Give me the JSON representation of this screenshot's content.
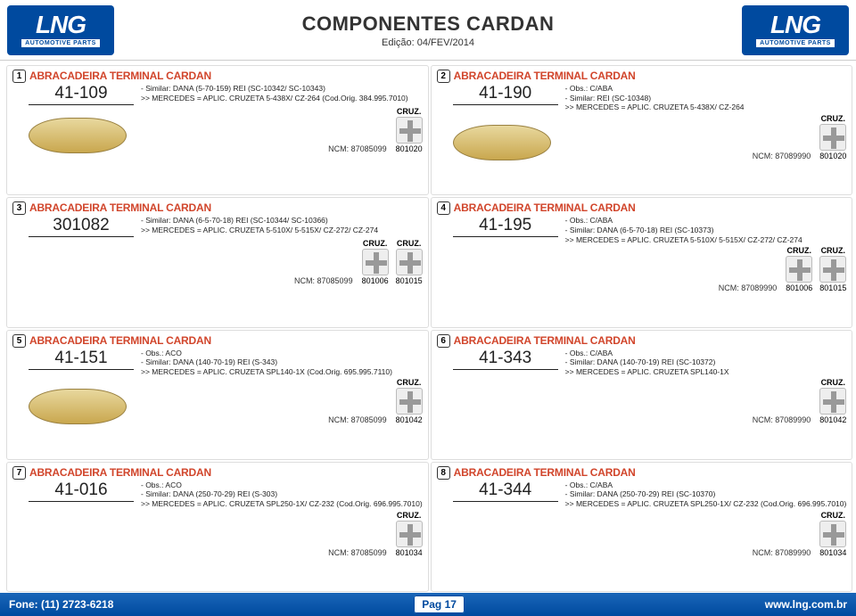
{
  "header": {
    "logo_main": "LNG",
    "logo_sub": "AUTOMOTIVE PARTS",
    "title": "COMPONENTES CARDAN",
    "edition": "Edição: 04/FEV/2014"
  },
  "footer": {
    "phone": "Fone: (11) 2723-6218",
    "page_label": "Pag 17",
    "url": "www.lng.com.br"
  },
  "items": [
    {
      "n": "1",
      "name": "ABRACADEIRA TERMINAL CARDAN",
      "code": "41-109",
      "lines": [
        "- Similar: DANA (5-70-159) REI (SC-10342/ SC-10343)",
        ">> MERCEDES = APLIC. CRUZETA 5-438X/ CZ-264 (Cod.Orig. 384.995.7010)"
      ],
      "ncm": "NCM: 87085099",
      "cruz": [
        "801020"
      ],
      "img": true
    },
    {
      "n": "2",
      "name": "ABRACADEIRA TERMINAL CARDAN",
      "code": "41-190",
      "lines": [
        "- Obs.: C/ABA",
        "- Similar: REI (SC-10348)",
        ">> MERCEDES = APLIC. CRUZETA 5-438X/ CZ-264"
      ],
      "ncm": "NCM: 87089990",
      "cruz": [
        "801020"
      ],
      "img": true
    },
    {
      "n": "3",
      "name": "ABRACADEIRA TERMINAL CARDAN",
      "code": "301082",
      "lines": [
        "- Similar: DANA (6-5-70-18) REI (SC-10344/ SC-10366)",
        ">> MERCEDES = APLIC. CRUZETA 5-510X/ 5-515X/ CZ-272/ CZ-274"
      ],
      "ncm": "NCM: 87085099",
      "cruz": [
        "801006",
        "801015"
      ],
      "img": false
    },
    {
      "n": "4",
      "name": "ABRACADEIRA TERMINAL CARDAN",
      "code": "41-195",
      "lines": [
        "- Obs.: C/ABA",
        "- Similar: DANA (6-5-70-18) REI (SC-10373)",
        ">> MERCEDES = APLIC. CRUZETA 5-510X/ 5-515X/ CZ-272/ CZ-274"
      ],
      "ncm": "NCM: 87089990",
      "cruz": [
        "801006",
        "801015"
      ],
      "img": false
    },
    {
      "n": "5",
      "name": "ABRACADEIRA TERMINAL CARDAN",
      "code": "41-151",
      "lines": [
        "- Obs.: ACO",
        "- Similar: DANA (140-70-19) REI (S-343)",
        ">> MERCEDES = APLIC. CRUZETA SPL140-1X (Cod.Orig. 695.995.7110)"
      ],
      "ncm": "NCM: 87085099",
      "cruz": [
        "801042"
      ],
      "img": true
    },
    {
      "n": "6",
      "name": "ABRACADEIRA TERMINAL CARDAN",
      "code": "41-343",
      "lines": [
        "- Obs.: C/ABA",
        "- Similar: DANA (140-70-19) REI (SC-10372)",
        ">> MERCEDES = APLIC. CRUZETA SPL140-1X"
      ],
      "ncm": "NCM: 87089990",
      "cruz": [
        "801042"
      ],
      "img": false
    },
    {
      "n": "7",
      "name": "ABRACADEIRA TERMINAL CARDAN",
      "code": "41-016",
      "lines": [
        "- Obs.: ACO",
        "- Similar: DANA (250-70-29) REI (S-303)",
        ">> MERCEDES = APLIC. CRUZETA SPL250-1X/ CZ-232 (Cod.Orig. 696.995.7010)"
      ],
      "ncm": "NCM: 87085099",
      "cruz": [
        "801034"
      ],
      "img": false
    },
    {
      "n": "8",
      "name": "ABRACADEIRA TERMINAL CARDAN",
      "code": "41-344",
      "lines": [
        "- Obs.: C/ABA",
        "- Similar: DANA (250-70-29) REI (SC-10370)",
        ">> MERCEDES = APLIC. CRUZETA SPL250-1X/ CZ-232 (Cod.Orig. 696.995.7010)"
      ],
      "ncm": "NCM: 87089990",
      "cruz": [
        "801034"
      ],
      "img": false
    }
  ],
  "cruz_label": "CRUZ."
}
